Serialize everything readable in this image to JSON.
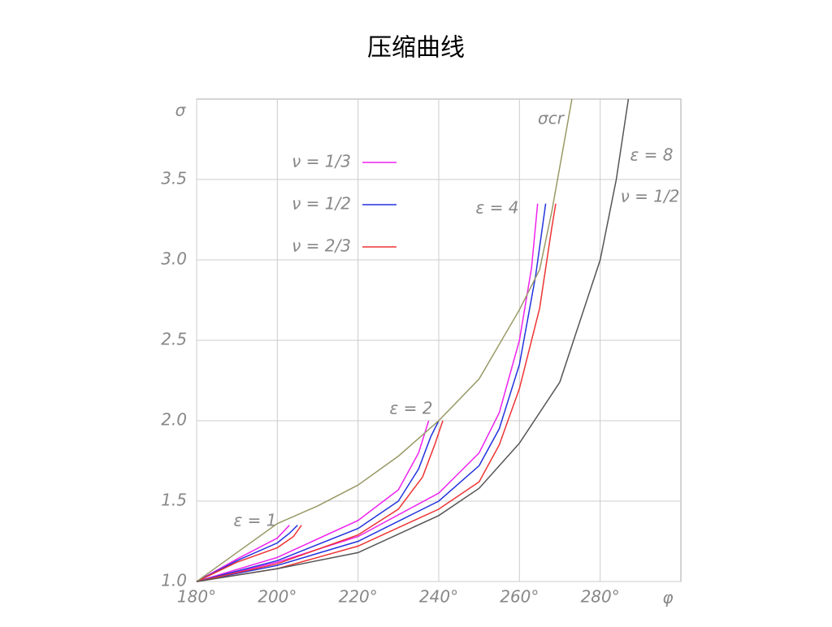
{
  "chart_data": {
    "type": "line",
    "title": "压缩曲线",
    "y_label": "σ",
    "x_label": "φ",
    "xlim": [
      180,
      300
    ],
    "ylim": [
      1,
      4
    ],
    "xticks": [
      {
        "value": 180,
        "label": "180°"
      },
      {
        "value": 200,
        "label": "200°"
      },
      {
        "value": 220,
        "label": "220°"
      },
      {
        "value": 240,
        "label": "240°"
      },
      {
        "value": 260,
        "label": "260°"
      },
      {
        "value": 280,
        "label": "280°"
      }
    ],
    "yticks": [
      {
        "value": 1,
        "label": "1.0"
      },
      1.5,
      {
        "value": 2,
        "label": "2.0"
      },
      2.5,
      {
        "value": 3,
        "label": "3.0"
      },
      3.5
    ],
    "grid": true,
    "legend": "upper-left",
    "annotations": [
      "σcr",
      "ε = 1",
      "ε = 2",
      "ε = 4",
      "ε = 8",
      "ν = 1/2"
    ],
    "series": [
      {
        "name": "ν = 1/3",
        "color": "#ee22ee",
        "x": [
          180,
          200,
          220,
          240,
          250,
          255,
          260,
          263,
          264.5
        ],
        "values": [
          1,
          1.12,
          1.28,
          1.55,
          1.8,
          2.05,
          2.5,
          2.95,
          3.35
        ]
      },
      {
        "name": "ν = 1/2",
        "color": "#2233dd",
        "x": [
          180,
          200,
          220,
          240,
          250,
          255,
          260,
          264,
          266.5
        ],
        "values": [
          1,
          1.1,
          1.25,
          1.5,
          1.72,
          1.95,
          2.35,
          2.9,
          3.35
        ]
      },
      {
        "name": "ν = 2/3",
        "color": "#ee3333",
        "x": [
          180,
          200,
          220,
          240,
          250,
          255,
          260,
          265,
          268,
          269
        ],
        "values": [
          1,
          1.08,
          1.22,
          1.45,
          1.62,
          1.85,
          2.2,
          2.7,
          3.2,
          3.35
        ]
      },
      {
        "color": "#ee22ee",
        "x": [
          180,
          200,
          220,
          230,
          235,
          237.5
        ],
        "values": [
          1,
          1.15,
          1.38,
          1.57,
          1.8,
          2
        ]
      },
      {
        "color": "#2233dd",
        "x": [
          180,
          200,
          220,
          230,
          235,
          238,
          240
        ],
        "values": [
          1,
          1.13,
          1.33,
          1.5,
          1.7,
          1.9,
          2
        ]
      },
      {
        "color": "#ee3333",
        "x": [
          180,
          200,
          220,
          230,
          236,
          239,
          241
        ],
        "values": [
          1,
          1.11,
          1.29,
          1.45,
          1.65,
          1.85,
          2
        ]
      },
      {
        "color": "#ee22ee",
        "x": [
          180,
          190,
          200,
          203
        ],
        "values": [
          1,
          1.14,
          1.27,
          1.35
        ]
      },
      {
        "color": "#2233dd",
        "x": [
          180,
          190,
          200,
          203,
          205
        ],
        "values": [
          1,
          1.13,
          1.24,
          1.3,
          1.35
        ]
      },
      {
        "color": "#ee3333",
        "x": [
          180,
          190,
          200,
          204,
          206
        ],
        "values": [
          1,
          1.12,
          1.21,
          1.28,
          1.35
        ]
      },
      {
        "color": "#999966",
        "x": [
          180,
          200,
          210,
          220,
          230,
          240,
          250,
          260,
          265,
          268,
          273
        ],
        "values": [
          1,
          1.36,
          1.47,
          1.6,
          1.78,
          2,
          2.26,
          2.69,
          2.94,
          3.3,
          4
        ]
      },
      {
        "color": "#555555",
        "x": [
          180,
          200,
          220,
          240,
          250,
          260,
          270,
          280,
          284,
          287
        ],
        "values": [
          1,
          1.08,
          1.18,
          1.41,
          1.58,
          1.86,
          2.24,
          3,
          3.5,
          4
        ]
      }
    ]
  }
}
